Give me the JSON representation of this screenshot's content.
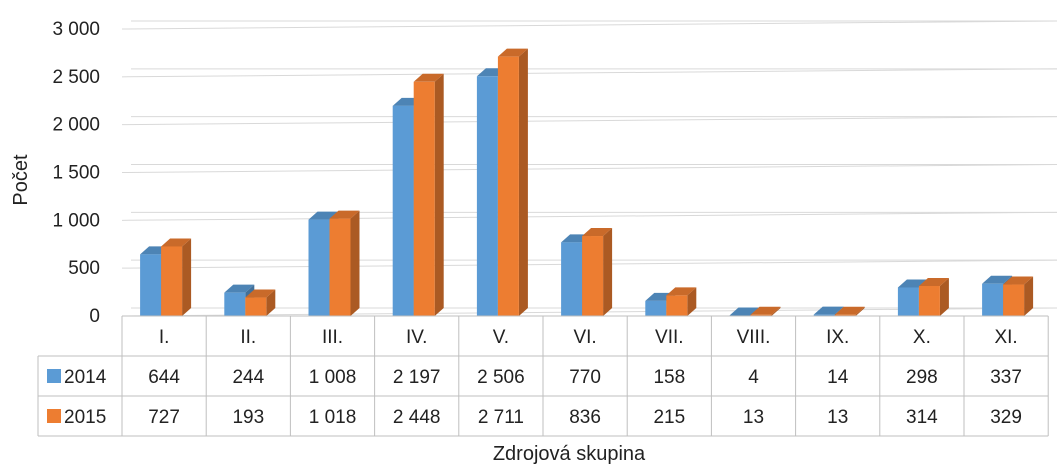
{
  "chart_data": {
    "type": "bar",
    "categories": [
      "I.",
      "II.",
      "III.",
      "IV.",
      "V.",
      "VI.",
      "VII.",
      "VIII.",
      "IX.",
      "X.",
      "XI."
    ],
    "series": [
      {
        "name": "2014",
        "values": [
          644,
          244,
          1008,
          2197,
          2506,
          770,
          158,
          4,
          14,
          298,
          337
        ],
        "labels": [
          "644",
          "244",
          "1 008",
          "2 197",
          "2 506",
          "770",
          "158",
          "4",
          "14",
          "298",
          "337"
        ],
        "color": "#5B9BD5"
      },
      {
        "name": "2015",
        "values": [
          727,
          193,
          1018,
          2448,
          2711,
          836,
          215,
          13,
          13,
          314,
          329
        ],
        "labels": [
          "727",
          "193",
          "1 018",
          "2 448",
          "2 711",
          "836",
          "215",
          "13",
          "13",
          "314",
          "329"
        ],
        "color": "#ED7D31"
      }
    ],
    "ylabel": "Počet",
    "xlabel": "Zdrojová skupina",
    "ylim": [
      0,
      3000
    ],
    "yticks": [
      0,
      500,
      1000,
      1500,
      2000,
      2500,
      3000
    ],
    "ytick_labels": [
      "0",
      "500",
      "1 000",
      "1 500",
      "2 000",
      "2 500",
      "3 000"
    ],
    "grid": true,
    "style": "3d-clustered-column",
    "data_table": true
  }
}
